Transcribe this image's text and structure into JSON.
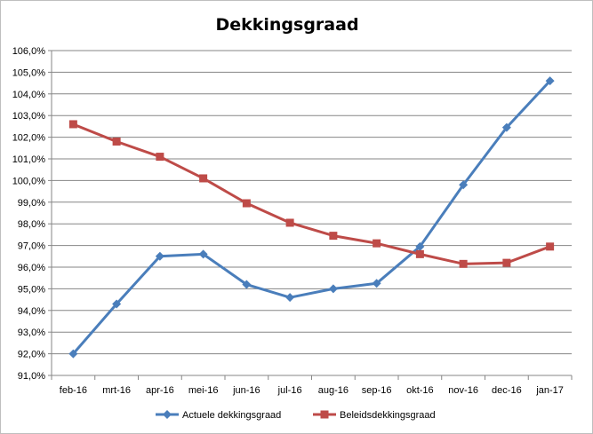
{
  "chart_data": {
    "type": "line",
    "title": "Dekkingsgraad",
    "xlabel": "",
    "ylabel": "",
    "categories": [
      "feb-16",
      "mrt-16",
      "apr-16",
      "mei-16",
      "jun-16",
      "jul-16",
      "aug-16",
      "sep-16",
      "okt-16",
      "nov-16",
      "dec-16",
      "jan-17"
    ],
    "ylim": [
      91,
      106
    ],
    "ytick_step": 1,
    "ytick_labels": [
      "91,0%",
      "92,0%",
      "93,0%",
      "94,0%",
      "95,0%",
      "96,0%",
      "97,0%",
      "98,0%",
      "99,0%",
      "100,0%",
      "101,0%",
      "102,0%",
      "103,0%",
      "104,0%",
      "105,0%",
      "106,0%"
    ],
    "grid": true,
    "legend_position": "bottom",
    "series": [
      {
        "name": "Actuele dekkingsgraad",
        "color": "#4a7ebb",
        "marker": "diamond",
        "values": [
          92.0,
          94.3,
          96.5,
          96.6,
          95.2,
          94.6,
          95.0,
          95.25,
          96.95,
          99.8,
          102.45,
          104.6
        ]
      },
      {
        "name": "Beleidsdekkingsgraad",
        "color": "#be4b48",
        "marker": "square",
        "values": [
          102.6,
          101.8,
          101.1,
          100.1,
          98.95,
          98.05,
          97.45,
          97.1,
          96.6,
          96.15,
          96.2,
          96.95
        ]
      }
    ]
  }
}
